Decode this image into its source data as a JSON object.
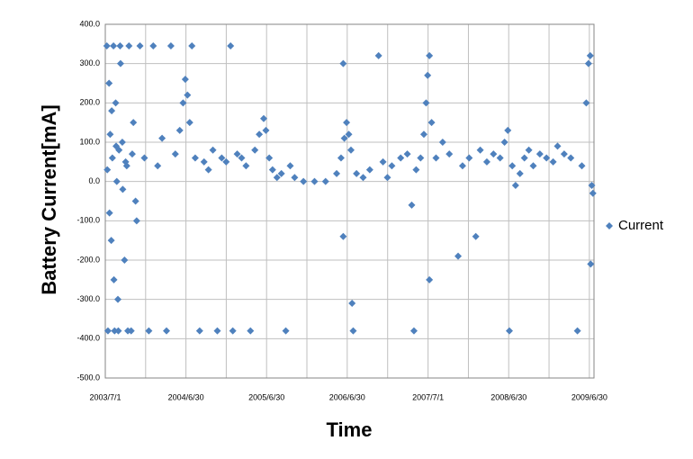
{
  "chart_data": {
    "type": "scatter",
    "x_label": "Time",
    "y_label": "Battery Current[mA]",
    "xlim": [
      37803,
      40015
    ],
    "ylim": [
      -500,
      400
    ],
    "xticks": [
      {
        "value": 37803,
        "label": "2003/7/1"
      },
      {
        "value": 38168,
        "label": "2004/6/30"
      },
      {
        "value": 38533,
        "label": "2005/6/30"
      },
      {
        "value": 38898,
        "label": "2006/6/30"
      },
      {
        "value": 39264,
        "label": "2007/7/1"
      },
      {
        "value": 39629,
        "label": "2008/6/30"
      },
      {
        "value": 39994,
        "label": "2009/6/30"
      }
    ],
    "x_minor_ticks": [
      37985.5,
      38350.5,
      38715.5,
      39081,
      39446.5,
      39811.5
    ],
    "yticks": [
      {
        "value": 400,
        "label": "400.0"
      },
      {
        "value": 300,
        "label": "300.0"
      },
      {
        "value": 200,
        "label": "200.0"
      },
      {
        "value": 100,
        "label": "100.0"
      },
      {
        "value": 0,
        "label": "0.0"
      },
      {
        "value": -100,
        "label": "-100.0"
      },
      {
        "value": -200,
        "label": "-200.0"
      },
      {
        "value": -300,
        "label": "-300.0"
      },
      {
        "value": -400,
        "label": "-400.0"
      },
      {
        "value": -500,
        "label": "-500.0"
      }
    ],
    "grid": true,
    "legend": "right",
    "x": [
      37810,
      37815,
      37820,
      37825,
      37830,
      37835,
      37840,
      37845,
      37850,
      37855,
      37860,
      37865,
      37870,
      37880,
      37890,
      37900,
      37910,
      37920,
      37930,
      37940,
      37812,
      37822,
      37832,
      37842,
      37852,
      37862,
      37872,
      37882,
      37895,
      37905,
      37925,
      37945,
      37960,
      37980,
      38000,
      38020,
      38040,
      38060,
      38080,
      38100,
      38120,
      38140,
      38155,
      38165,
      38175,
      38185,
      38195,
      38210,
      38230,
      38250,
      38270,
      38290,
      38310,
      38330,
      38350,
      38370,
      38380,
      38400,
      38420,
      38440,
      38460,
      38480,
      38500,
      38520,
      38530,
      38545,
      38560,
      38580,
      38600,
      38620,
      38640,
      38660,
      38700,
      38750,
      38800,
      38850,
      38870,
      38885,
      38895,
      38905,
      38915,
      38925,
      38940,
      38970,
      39000,
      39040,
      39060,
      39080,
      39100,
      39140,
      39170,
      39190,
      39200,
      39210,
      39230,
      39245,
      39255,
      39262,
      39270,
      39280,
      39300,
      39330,
      39360,
      39400,
      39420,
      39450,
      39480,
      39500,
      39530,
      39560,
      39590,
      39610,
      39625,
      39632,
      39645,
      39660,
      39680,
      39700,
      39720,
      39740,
      39770,
      39800,
      39830,
      39850,
      39880,
      39910,
      39940,
      39960,
      39980,
      39990,
      39998,
      40005,
      40010,
      38920,
      38880,
      39270,
      38880,
      40000
    ],
    "series": [
      {
        "name": "Current",
        "color": "#4f81bd",
        "values": [
          345,
          -380,
          250,
          120,
          -150,
          60,
          345,
          -380,
          200,
          0,
          -300,
          80,
          345,
          100,
          -200,
          40,
          345,
          -380,
          150,
          -50,
          30,
          -80,
          180,
          -250,
          90,
          -380,
          300,
          -20,
          50,
          -380,
          70,
          -100,
          345,
          60,
          -380,
          345,
          40,
          110,
          -380,
          345,
          70,
          130,
          200,
          260,
          220,
          150,
          345,
          60,
          -380,
          50,
          30,
          80,
          -380,
          60,
          50,
          345,
          -380,
          70,
          60,
          40,
          -380,
          80,
          120,
          160,
          130,
          60,
          30,
          10,
          20,
          -380,
          40,
          10,
          0,
          0,
          0,
          20,
          60,
          110,
          150,
          120,
          80,
          -380,
          20,
          10,
          30,
          320,
          50,
          10,
          40,
          60,
          70,
          -60,
          -380,
          30,
          60,
          120,
          200,
          270,
          320,
          150,
          60,
          100,
          70,
          -190,
          40,
          60,
          -140,
          80,
          50,
          70,
          60,
          100,
          130,
          -380,
          40,
          -10,
          20,
          60,
          80,
          40,
          70,
          60,
          50,
          90,
          70,
          60,
          -380,
          40,
          200,
          300,
          320,
          -10,
          -30,
          -310,
          -140,
          -250,
          300,
          -210
        ]
      }
    ]
  }
}
